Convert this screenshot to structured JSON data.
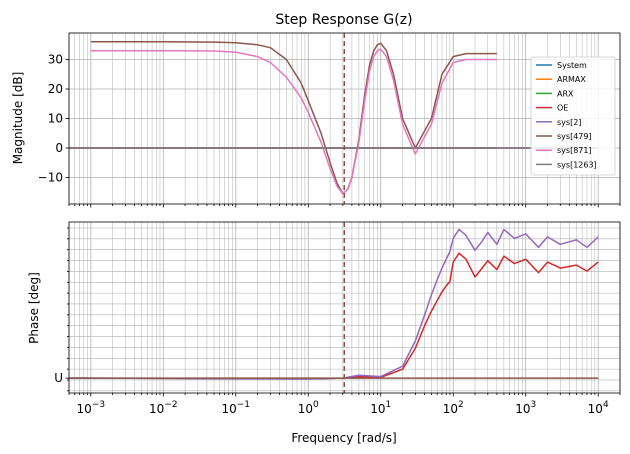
{
  "chart_data": [
    {
      "type": "line",
      "title": "Step Response G(z)",
      "xlabel": "",
      "ylabel": "Magnitude [dB]",
      "xscale": "log",
      "xlim": [
        0.0005,
        20000
      ],
      "ylim": [
        -19,
        39
      ],
      "xticks": [
        {
          "value": 0.001,
          "base": "10",
          "exp": "−3"
        },
        {
          "value": 0.01,
          "base": "10",
          "exp": "−2"
        },
        {
          "value": 0.1,
          "base": "10",
          "exp": "−1"
        },
        {
          "value": 1,
          "base": "10",
          "exp": "0"
        },
        {
          "value": 10,
          "base": "10",
          "exp": "1"
        },
        {
          "value": 100,
          "base": "10",
          "exp": "2"
        },
        {
          "value": 1000,
          "base": "10",
          "exp": "3"
        },
        {
          "value": 10000,
          "base": "10",
          "exp": "4"
        }
      ],
      "yticks": [
        {
          "value": 30,
          "label": "30"
        },
        {
          "value": 20,
          "label": "20"
        },
        {
          "value": 10,
          "label": "10"
        },
        {
          "value": 0,
          "label": "0"
        },
        {
          "value": -10,
          "label": "−10"
        }
      ],
      "grid": true,
      "vline": {
        "x": 3.14,
        "style": "dashed"
      },
      "legend": {
        "position": "right",
        "entries": [
          {
            "label": "System",
            "color": "#1f77b4"
          },
          {
            "label": "ARMAX",
            "color": "#ff7f0e"
          },
          {
            "label": "ARX",
            "color": "#2ca02c"
          },
          {
            "label": "OE",
            "color": "#d62728"
          },
          {
            "label": "sys[2]",
            "color": "#9467bd"
          },
          {
            "label": "sys[479]",
            "color": "#8c564b"
          },
          {
            "label": "sys[871]",
            "color": "#e377c2"
          },
          {
            "label": "sys[1263]",
            "color": "#7f7f7f"
          }
        ]
      },
      "series": [
        {
          "name": "System",
          "color": "#1f77b4",
          "x": [
            0.0005,
            0.00095
          ],
          "y": [
            0,
            0
          ]
        },
        {
          "name": "ARMAX",
          "color": "#ff7f0e",
          "x": [
            0.0005,
            0.00095,
            400
          ],
          "y": [
            0,
            0,
            0
          ]
        },
        {
          "name": "ARX",
          "color": "#2ca02c",
          "x": [
            0.0005,
            400
          ],
          "y": [
            0,
            0
          ]
        },
        {
          "name": "OE",
          "color": "#d62728",
          "x": [
            0.0005,
            0.00095,
            10000
          ],
          "y": [
            0,
            0,
            0
          ]
        },
        {
          "name": "sys[2]",
          "color": "#9467bd",
          "x": [
            0.0005,
            10000
          ],
          "y": [
            0,
            0
          ]
        },
        {
          "name": "sys[479]",
          "color": "#8c564b",
          "x": [
            0.001,
            0.01,
            0.05,
            0.1,
            0.2,
            0.3,
            0.5,
            0.8,
            1,
            1.5,
            2,
            2.5,
            3,
            3.5,
            4,
            5,
            6,
            7,
            8,
            9,
            10,
            12,
            15,
            20,
            30,
            50,
            70,
            100,
            150,
            200,
            300,
            400
          ],
          "y": [
            36,
            36,
            35.9,
            35.7,
            35,
            34,
            30,
            22,
            16,
            5,
            -5,
            -12,
            -15.5,
            -14,
            -10,
            3,
            18,
            28,
            33,
            35,
            35.5,
            33,
            25,
            10,
            0,
            10,
            25,
            31,
            32,
            32,
            32,
            32
          ]
        },
        {
          "name": "sys[871]",
          "color": "#e377c2",
          "x": [
            0.001,
            0.01,
            0.05,
            0.1,
            0.2,
            0.3,
            0.5,
            0.8,
            1,
            1.5,
            2,
            2.5,
            3,
            3.5,
            4,
            5,
            6,
            7,
            8,
            9,
            10,
            12,
            15,
            20,
            30,
            50,
            70,
            100,
            150,
            200,
            300,
            400
          ],
          "y": [
            33,
            33,
            32.9,
            32.5,
            31,
            29,
            24,
            17,
            12,
            2,
            -7,
            -13,
            -15.5,
            -14,
            -10,
            2,
            16,
            26,
            31,
            33,
            33.5,
            31,
            23,
            8,
            -2,
            8,
            22,
            29,
            30,
            30,
            30,
            30
          ]
        },
        {
          "name": "sys[1263]",
          "color": "#7f7f7f",
          "x": [
            0.0005,
            10000
          ],
          "y": [
            0,
            0
          ]
        }
      ]
    },
    {
      "type": "line",
      "title": "",
      "xlabel": "Frequency [rad/s]",
      "ylabel": "Phase [deg]",
      "xscale": "log",
      "xlim": [
        0.0005,
        20000
      ],
      "ylim": [
        -0.1,
        1.05
      ],
      "yticks": [
        {
          "value": 0,
          "label": "U"
        }
      ],
      "grid": true,
      "vline": {
        "x": 3.14,
        "style": "dashed"
      },
      "series": [
        {
          "name": "System",
          "color": "#1f77b4",
          "x": [
            0.0005,
            0.00095
          ],
          "y": [
            0,
            0
          ]
        },
        {
          "name": "OE",
          "color": "#d62728",
          "x": [
            0.0005,
            1,
            3,
            5,
            10,
            20,
            30,
            40,
            50,
            60,
            70,
            80,
            90,
            100,
            120,
            150,
            200,
            250,
            300,
            400,
            500,
            700,
            1000,
            1500,
            2000,
            3000,
            5000,
            7000,
            10000
          ],
          "y": [
            0,
            -0.005,
            0,
            0.01,
            0.005,
            0.06,
            0.2,
            0.35,
            0.45,
            0.52,
            0.58,
            0.62,
            0.65,
            0.78,
            0.84,
            0.8,
            0.68,
            0.74,
            0.79,
            0.73,
            0.82,
            0.77,
            0.8,
            0.71,
            0.78,
            0.74,
            0.76,
            0.72,
            0.78
          ]
        },
        {
          "name": "sys[2]",
          "color": "#9467bd",
          "x": [
            0.0005,
            1,
            3,
            5,
            10,
            20,
            30,
            40,
            50,
            60,
            70,
            80,
            90,
            100,
            120,
            150,
            200,
            250,
            300,
            400,
            500,
            700,
            1000,
            1500,
            2000,
            3000,
            5000,
            7000,
            10000
          ],
          "y": [
            0,
            -0.005,
            0,
            0.02,
            0.01,
            0.08,
            0.25,
            0.42,
            0.56,
            0.66,
            0.74,
            0.8,
            0.85,
            0.94,
            1.0,
            0.96,
            0.86,
            0.92,
            0.98,
            0.9,
            1.0,
            0.94,
            0.97,
            0.88,
            0.95,
            0.9,
            0.93,
            0.88,
            0.95
          ]
        },
        {
          "name": "sys[1263]",
          "color": "#8c564b",
          "x": [
            0.0005,
            10000
          ],
          "y": [
            0,
            0
          ]
        }
      ]
    }
  ]
}
